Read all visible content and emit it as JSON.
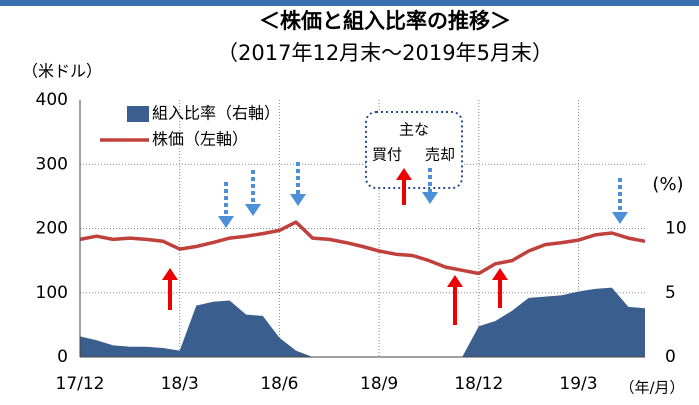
{
  "chart_data": {
    "type": "combo",
    "title": "＜株価と組入比率の推移＞",
    "subtitle": "（2017年12月末～2019年5月末）",
    "y_label": "（米ドル）",
    "y2_label": "(%)",
    "x_label": "（年/月）",
    "annotation": {
      "title": "主な",
      "buy": "買付",
      "sell": "売却"
    },
    "x": [
      0,
      0.5,
      1,
      1.5,
      2,
      2.5,
      3,
      3.5,
      4,
      4.5,
      5,
      5.5,
      6,
      6.5,
      7,
      7.5,
      8,
      8.5,
      9,
      9.5,
      10,
      10.5,
      11,
      11.5,
      12,
      12.5,
      13,
      13.5,
      14,
      14.5,
      15,
      15.5,
      16,
      16.5,
      17
    ],
    "xlim": [
      0,
      17
    ],
    "xticks": [
      {
        "value": 0,
        "label": "17/12"
      },
      {
        "value": 3,
        "label": "18/3"
      },
      {
        "value": 6,
        "label": "18/6"
      },
      {
        "value": 9,
        "label": "18/9"
      },
      {
        "value": 12,
        "label": "18/12"
      },
      {
        "value": 15,
        "label": "19/3"
      }
    ],
    "ylim": [
      0,
      400
    ],
    "yticks": [
      0,
      100,
      200,
      300,
      400
    ],
    "y2lim": [
      0,
      20
    ],
    "y2ticks": [
      0,
      5,
      10
    ],
    "grid": true,
    "legend": "upper left",
    "series": [
      {
        "name": "組入比率（右軸）",
        "type": "area",
        "axis": "y2",
        "color": "#3a5f8f",
        "values": [
          1.6,
          1.3,
          0.9,
          0.8,
          0.8,
          0.7,
          0.5,
          4.0,
          4.3,
          4.4,
          3.3,
          3.2,
          1.5,
          0.5,
          0,
          0,
          0,
          0,
          0,
          0,
          0,
          0,
          0,
          0,
          2.4,
          2.8,
          3.6,
          4.6,
          4.7,
          4.8,
          5.1,
          5.3,
          5.4,
          3.9,
          3.8
        ]
      },
      {
        "name": "株価（左軸）",
        "type": "line",
        "axis": "y",
        "color": "#c0403b",
        "values": [
          183,
          188,
          183,
          185,
          183,
          180,
          168,
          172,
          178,
          185,
          188,
          192,
          197,
          210,
          185,
          183,
          178,
          172,
          165,
          160,
          158,
          150,
          140,
          135,
          130,
          145,
          150,
          165,
          175,
          178,
          182,
          190,
          193,
          185,
          180
        ]
      }
    ]
  }
}
